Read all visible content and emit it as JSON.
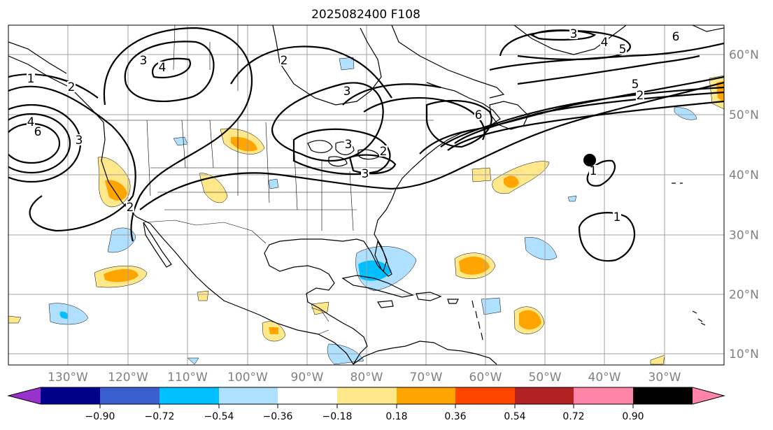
{
  "title": "2025082400 F108",
  "lon_labels": [
    "130°W",
    "120°W",
    "110°W",
    "100°W",
    "90°W",
    "80°W",
    "70°W",
    "60°W",
    "50°W",
    "40°W",
    "30°W"
  ],
  "lat_labels": [
    "60°N",
    "50°N",
    "40°N",
    "30°N",
    "20°N",
    "10°N"
  ],
  "colorbar": {
    "ticks": [
      "−0.90",
      "−0.72",
      "−0.54",
      "−0.36",
      "−0.18",
      "0.18",
      "0.36",
      "0.54",
      "0.72",
      "0.90"
    ],
    "colors": [
      "#9932cc",
      "#00008b",
      "#3a5fcd",
      "#00bfff",
      "#b0e0ff",
      "#ffffff",
      "#ffe88a",
      "#ffa500",
      "#ff4500",
      "#b22222",
      "#ff85a8"
    ]
  },
  "contour_labels": [
    "1",
    "2",
    "3",
    "4",
    "3",
    "2",
    "3",
    "4",
    "5",
    "6",
    "5",
    "2",
    "3",
    "3",
    "2",
    "3",
    "6",
    "1",
    "1",
    "2",
    "4",
    "6"
  ],
  "marker": "storm-position-dot"
}
